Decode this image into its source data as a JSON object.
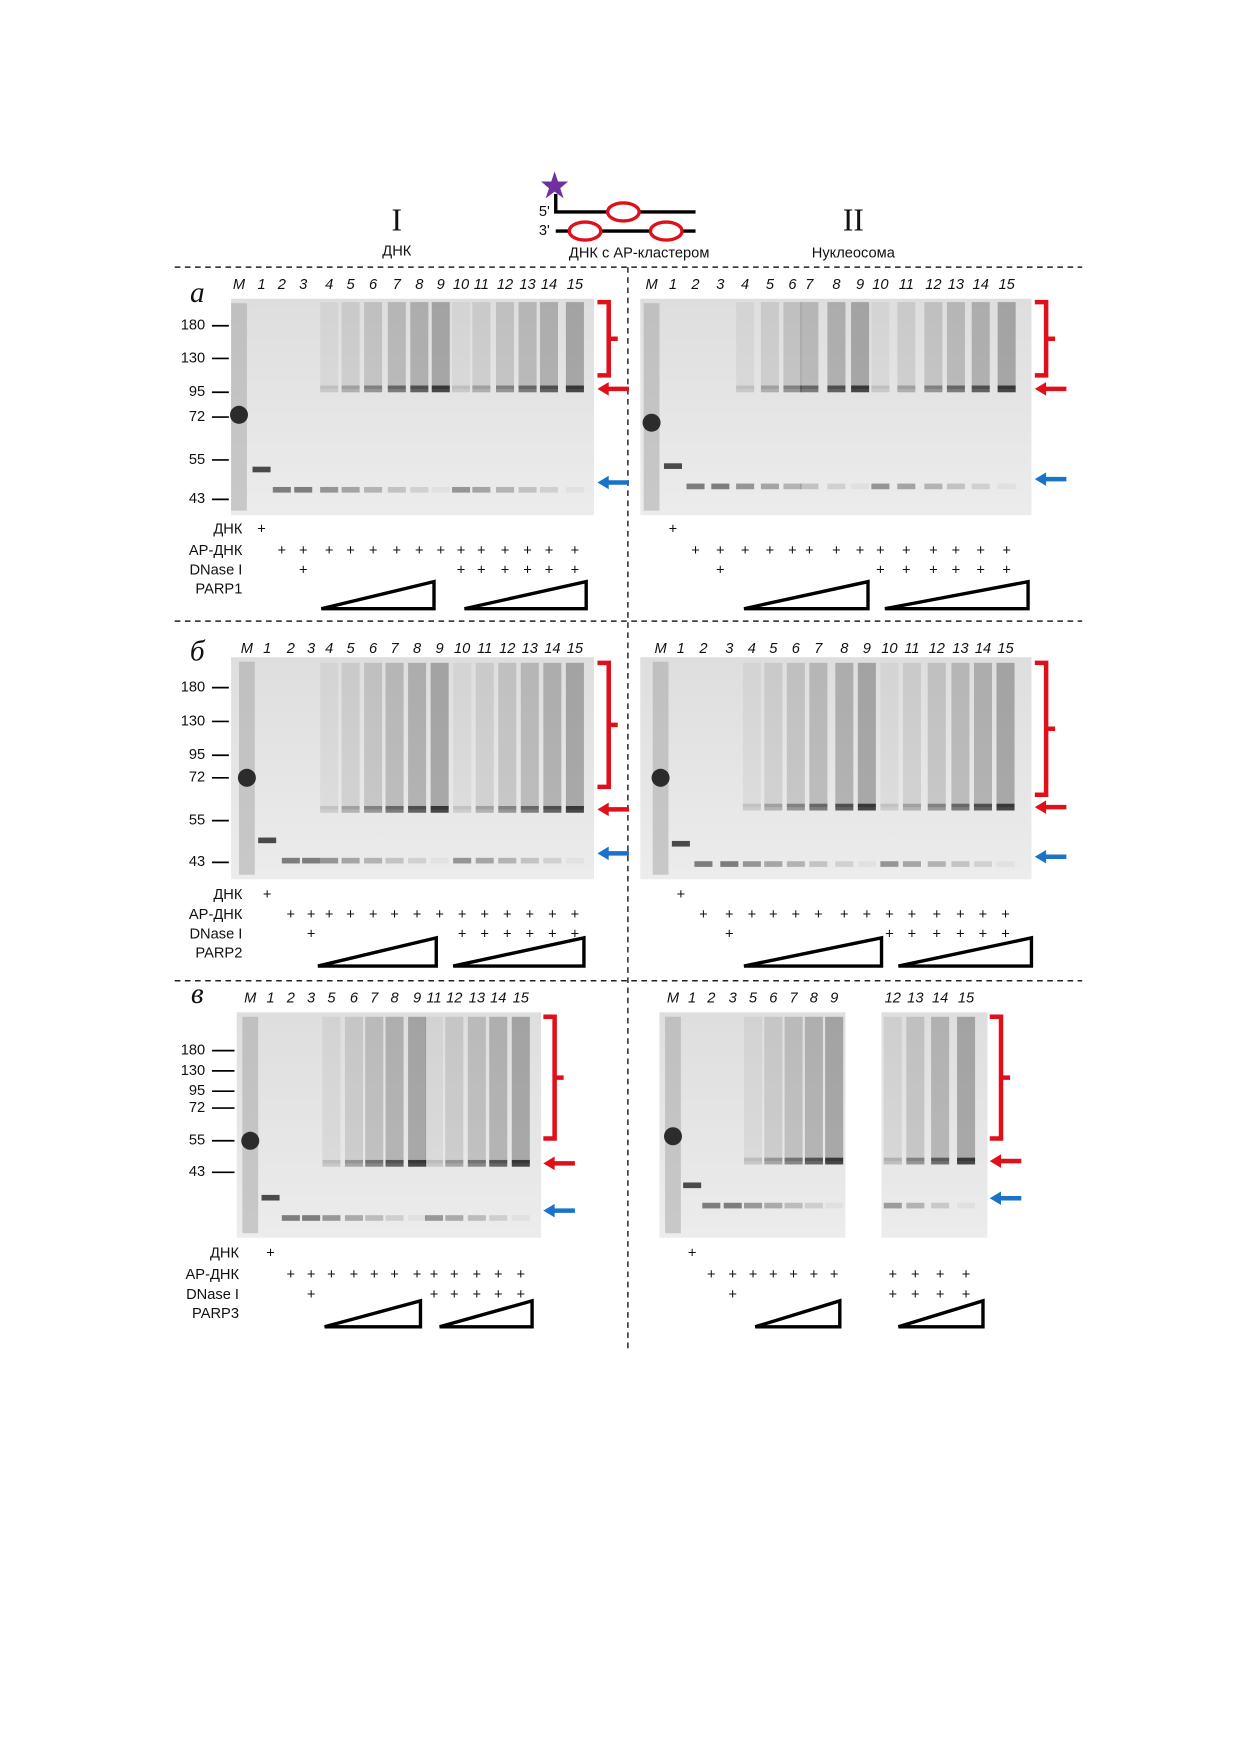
{
  "header": {
    "col1_numeral": "I",
    "col1_label": "ДНК",
    "strand5": "5'",
    "strand3": "3'",
    "center_label": "ДНК с AP-кластером",
    "col2_numeral": "II",
    "col2_label": "Нуклеосома"
  },
  "panels": [
    {
      "letter": "а",
      "left": {
        "lanes": [
          "M",
          "1",
          "2",
          "3",
          "4",
          "5",
          "6",
          "7",
          "8",
          "9",
          "10",
          "11",
          "12",
          "13",
          "14",
          "15"
        ],
        "markers": [
          "180",
          "130",
          "95",
          "72",
          "55",
          "43"
        ],
        "rows": [
          {
            "label": "ДНК",
            "cells": [
              null,
              "+",
              null,
              null,
              null,
              null,
              null,
              null,
              null,
              null,
              null,
              null,
              null,
              null,
              null,
              null
            ]
          },
          {
            "label": "AP-ДНК",
            "cells": [
              null,
              null,
              "+",
              "+",
              "+",
              "+",
              "+",
              "+",
              "+",
              "+",
              "+",
              "+",
              "+",
              "+",
              "+",
              "+"
            ]
          },
          {
            "label": "DNase I",
            "cells": [
              null,
              null,
              null,
              "+",
              null,
              null,
              null,
              null,
              null,
              null,
              "+",
              "+",
              "+",
              "+",
              "+",
              "+"
            ]
          }
        ],
        "enzyme": "PARP1"
      },
      "right": {
        "lanes": [
          "M",
          "1",
          "2",
          "3",
          "4",
          "5",
          "6",
          "7",
          "8",
          "9",
          "10",
          "11",
          "12",
          "13",
          "14",
          "15"
        ],
        "rows": [
          {
            "cells": [
              null,
              "+",
              null,
              null,
              null,
              null,
              null,
              null,
              null,
              null,
              null,
              null,
              null,
              null,
              null,
              null
            ]
          },
          {
            "cells": [
              null,
              null,
              "+",
              "+",
              "+",
              "+",
              "+",
              "+",
              "+",
              "+",
              "+",
              "+",
              "+",
              "+",
              "+",
              "+"
            ]
          },
          {
            "cells": [
              null,
              null,
              null,
              "+",
              null,
              null,
              null,
              null,
              null,
              null,
              "+",
              "+",
              "+",
              "+",
              "+",
              "+"
            ]
          }
        ]
      }
    },
    {
      "letter": "б",
      "left": {
        "lanes": [
          "M",
          "1",
          "2",
          "3",
          "4",
          "5",
          "6",
          "7",
          "8",
          "9",
          "10",
          "11",
          "12",
          "13",
          "14",
          "15"
        ],
        "markers": [
          "180",
          "130",
          "95",
          "72",
          "55",
          "43"
        ],
        "rows": [
          {
            "label": "ДНК",
            "cells": [
              null,
              "+",
              null,
              null,
              null,
              null,
              null,
              null,
              null,
              null,
              null,
              null,
              null,
              null,
              null,
              null
            ]
          },
          {
            "label": "AP-ДНК",
            "cells": [
              null,
              null,
              "+",
              "+",
              "+",
              "+",
              "+",
              "+",
              "+",
              "+",
              "+",
              "+",
              "+",
              "+",
              "+",
              "+"
            ]
          },
          {
            "label": "DNase I",
            "cells": [
              null,
              null,
              null,
              "+",
              null,
              null,
              null,
              null,
              null,
              null,
              "+",
              "+",
              "+",
              "+",
              "+",
              "+"
            ]
          }
        ],
        "enzyme": "PARP2"
      },
      "right": {
        "lanes": [
          "M",
          "1",
          "2",
          "3",
          "4",
          "5",
          "6",
          "7",
          "8",
          "9",
          "10",
          "11",
          "12",
          "13",
          "14",
          "15"
        ],
        "rows": [
          {
            "cells": [
              null,
              "+",
              null,
              null,
              null,
              null,
              null,
              null,
              null,
              null,
              null,
              null,
              null,
              null,
              null,
              null
            ]
          },
          {
            "cells": [
              null,
              null,
              "+",
              "+",
              "+",
              "+",
              "+",
              "+",
              "+",
              "+",
              "+",
              "+",
              "+",
              "+",
              "+",
              "+"
            ]
          },
          {
            "cells": [
              null,
              null,
              null,
              "+",
              null,
              null,
              null,
              null,
              null,
              null,
              "+",
              "+",
              "+",
              "+",
              "+",
              "+"
            ]
          }
        ]
      }
    },
    {
      "letter": "в",
      "left": {
        "lanes": [
          "M",
          "1",
          "2",
          "3",
          "5",
          "6",
          "7",
          "8",
          "9",
          "11",
          "12",
          "13",
          "14",
          "15"
        ],
        "markers": [
          "180",
          "130",
          "95",
          "72",
          "55",
          "43"
        ],
        "rows": [
          {
            "label": "ДНК",
            "cells": [
              null,
              "+",
              null,
              null,
              null,
              null,
              null,
              null,
              null,
              null,
              null,
              null,
              null,
              null
            ]
          },
          {
            "label": "AP-ДНК",
            "cells": [
              null,
              null,
              "+",
              "+",
              "+",
              "+",
              "+",
              "+",
              "+",
              "+",
              "+",
              "+",
              "+",
              "+"
            ]
          },
          {
            "label": "DNase I",
            "cells": [
              null,
              null,
              null,
              "+",
              null,
              null,
              null,
              null,
              null,
              "+",
              "+",
              "+",
              "+",
              "+"
            ]
          }
        ],
        "enzyme": "PARP3"
      },
      "right": {
        "lanes": [
          "M",
          "1",
          "2",
          "3",
          "5",
          "6",
          "7",
          "8",
          "9",
          "12",
          "13",
          "14",
          "15"
        ],
        "rows": [
          {
            "cells": [
              null,
              "+",
              null,
              null,
              null,
              null,
              null,
              null,
              null,
              null,
              null,
              null,
              null
            ]
          },
          {
            "cells": [
              null,
              null,
              "+",
              "+",
              "+",
              "+",
              "+",
              "+",
              "+",
              "+",
              "+",
              "+",
              "+"
            ]
          },
          {
            "cells": [
              null,
              null,
              null,
              "+",
              null,
              null,
              null,
              null,
              null,
              "+",
              "+",
              "+",
              "+"
            ]
          }
        ]
      }
    }
  ]
}
